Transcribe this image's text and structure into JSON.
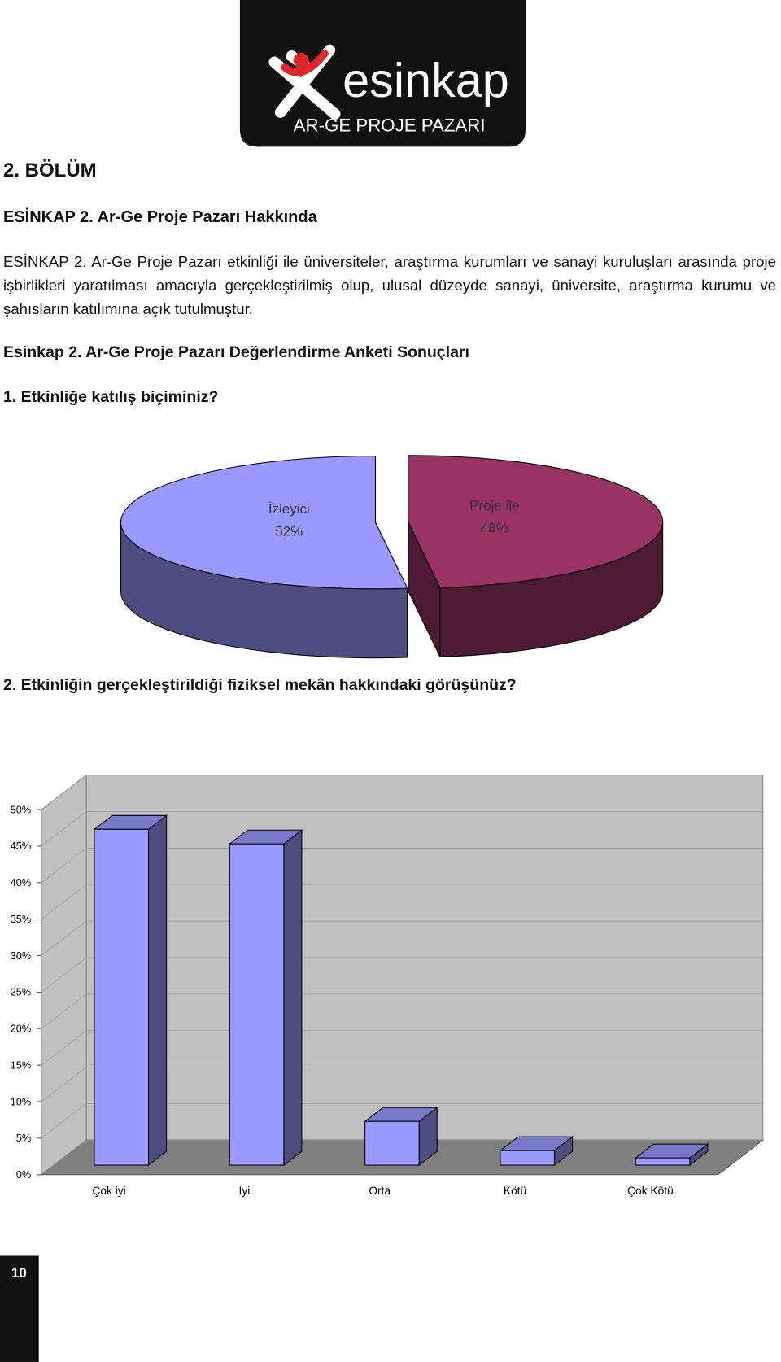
{
  "header": {
    "brand": "esinkap",
    "tagline": "AR-GE PROJE PAZARI"
  },
  "section": "2. BÖLÜM",
  "subheading": "ESİNKAP 2. Ar-Ge Proje Pazarı Hakkında",
  "paragraph": "ESİNKAP 2. Ar-Ge Proje Pazarı etkinliği ile üniversiteler, araştırma kurumları ve sanayi kuruluşları arasında proje işbirlikleri yaratılması amacıyla gerçekleştirilmiş olup, ulusal düzeyde sanayi, üniversite, araştırma kurumu ve şahısların katılımına açık tutulmuştur.",
  "survey_title": "Esinkap 2. Ar-Ge Proje Pazarı Değerlendirme Anketi Sonuçları",
  "chart_data": [
    {
      "type": "pie3d",
      "title": "1. Etkinliğe katılış biçiminiz?",
      "categories": [
        "Proje ile",
        "İzleyici"
      ],
      "values": [
        48,
        52
      ],
      "value_labels": [
        "48%",
        "52%"
      ],
      "colors": [
        "#993366",
        "#9999ff"
      ]
    },
    {
      "type": "bar3d",
      "title": "2. Etkinliğin gerçekleştirildiği fiziksel mekân hakkındaki görüşünüz?",
      "categories": [
        "Çok iyi",
        "İyi",
        "Orta",
        "Kötü",
        "Çok Kötü"
      ],
      "values": [
        46,
        44,
        6,
        2,
        1
      ],
      "color": "#9999ff",
      "ylim": [
        0,
        50
      ],
      "yticks": [
        {
          "value": 0,
          "label": "0%"
        },
        {
          "value": 5,
          "label": "5%"
        },
        {
          "value": 10,
          "label": "10%"
        },
        {
          "value": 15,
          "label": "15%"
        },
        {
          "value": 20,
          "label": "20%"
        },
        {
          "value": 25,
          "label": "25%"
        },
        {
          "value": 30,
          "label": "30%"
        },
        {
          "value": 35,
          "label": "35%"
        },
        {
          "value": 40,
          "label": "40%"
        },
        {
          "value": 45,
          "label": "45%"
        },
        {
          "value": 50,
          "label": "50%"
        }
      ],
      "grid": true
    }
  ],
  "page_number": "10"
}
